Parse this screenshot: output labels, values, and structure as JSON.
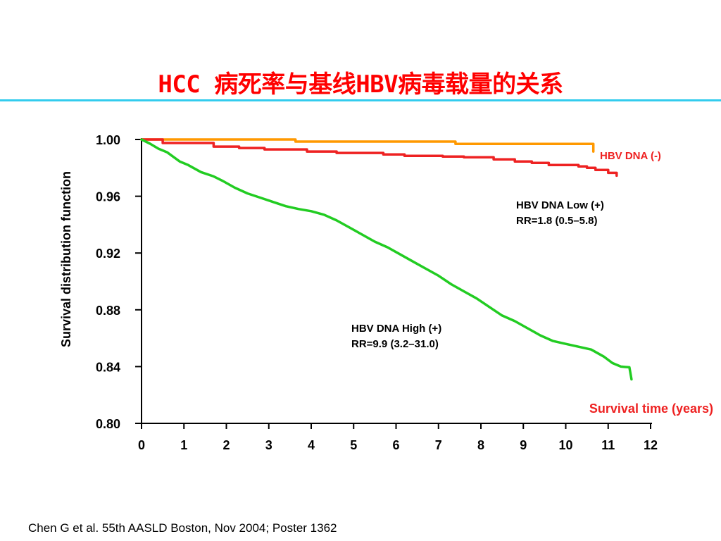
{
  "slide": {
    "title": "HCC 病死率与基线HBV病毒载量的关系",
    "source_note": "Chen G et al. 55th AASLD Boston, Nov 2004; Poster 1362"
  },
  "colors": {
    "title": "#ff0000",
    "rule": "#33ccee",
    "hbv_negative": "#ff9900",
    "hbv_low": "#ee2222",
    "hbv_high": "#22cc22",
    "axis": "#000000",
    "xlabel": "#ee2222"
  },
  "chart_data": {
    "type": "line",
    "title": "",
    "xlabel": "Survival time (years)",
    "ylabel": "Survival distribution function",
    "xlim": [
      0,
      12
    ],
    "ylim": [
      0.8,
      1.0
    ],
    "xticks": [
      "0",
      "1",
      "2",
      "3",
      "4",
      "5",
      "6",
      "7",
      "8",
      "9",
      "10",
      "11",
      "12"
    ],
    "yticks": [
      "0.80",
      "0.84",
      "0.88",
      "0.92",
      "0.96",
      "1.00"
    ],
    "grid": false,
    "step": true,
    "annotations": {
      "negative": "HBV DNA (-)",
      "low_line1": "HBV DNA Low (+)",
      "low_line2": "RR=1.8 (0.5–5.8)",
      "high_line1": "HBV DNA High (+)",
      "high_line2": "RR=9.9 (3.2–31.0)"
    },
    "series": [
      {
        "name": "HBV DNA (-)",
        "color": "#ff9900",
        "x": [
          0,
          3.63,
          3.63,
          7.4,
          7.4,
          10.65,
          10.65
        ],
        "y": [
          1.0,
          1.0,
          0.9985,
          0.9985,
          0.9969,
          0.9969,
          0.9915
        ]
      },
      {
        "name": "HBV DNA Low (+)",
        "color": "#ee2222",
        "x": [
          0,
          0.5,
          0.5,
          1.7,
          1.7,
          2.3,
          2.3,
          2.9,
          2.9,
          3.9,
          3.9,
          4.6,
          4.6,
          5.7,
          5.7,
          6.2,
          6.2,
          7.1,
          7.1,
          7.6,
          7.6,
          8.3,
          8.3,
          8.8,
          8.8,
          9.2,
          9.2,
          9.6,
          9.6,
          10.3,
          10.3,
          10.5,
          10.5,
          10.7,
          10.7,
          11.0,
          11.0,
          11.2,
          11.2
        ],
        "y": [
          1.0,
          1.0,
          0.9975,
          0.9975,
          0.995,
          0.995,
          0.994,
          0.994,
          0.993,
          0.993,
          0.9915,
          0.9915,
          0.9905,
          0.9905,
          0.9895,
          0.9895,
          0.9885,
          0.9885,
          0.988,
          0.988,
          0.9875,
          0.9875,
          0.986,
          0.986,
          0.9845,
          0.9845,
          0.9835,
          0.9835,
          0.982,
          0.982,
          0.981,
          0.981,
          0.98,
          0.98,
          0.9785,
          0.9785,
          0.9765,
          0.9765,
          0.9745
        ]
      },
      {
        "name": "HBV DNA High (+)",
        "color": "#22cc22",
        "x": [
          0,
          0.2,
          0.4,
          0.6,
          0.9,
          1.1,
          1.4,
          1.7,
          1.9,
          2.2,
          2.5,
          2.8,
          3.1,
          3.4,
          3.7,
          4.0,
          4.3,
          4.6,
          4.9,
          5.2,
          5.5,
          5.8,
          6.1,
          6.4,
          6.7,
          7.0,
          7.3,
          7.6,
          7.9,
          8.2,
          8.5,
          8.8,
          9.1,
          9.4,
          9.7,
          10.0,
          10.3,
          10.6,
          10.9,
          11.1,
          11.3,
          11.5,
          11.55
        ],
        "y": [
          1.0,
          0.997,
          0.9935,
          0.991,
          0.9845,
          0.982,
          0.977,
          0.974,
          0.971,
          0.966,
          0.962,
          0.959,
          0.956,
          0.953,
          0.951,
          0.9495,
          0.947,
          0.943,
          0.938,
          0.933,
          0.928,
          0.924,
          0.919,
          0.914,
          0.909,
          0.904,
          0.898,
          0.893,
          0.888,
          0.882,
          0.876,
          0.872,
          0.867,
          0.862,
          0.858,
          0.856,
          0.854,
          0.852,
          0.847,
          0.8425,
          0.84,
          0.8395,
          0.831
        ]
      }
    ]
  }
}
